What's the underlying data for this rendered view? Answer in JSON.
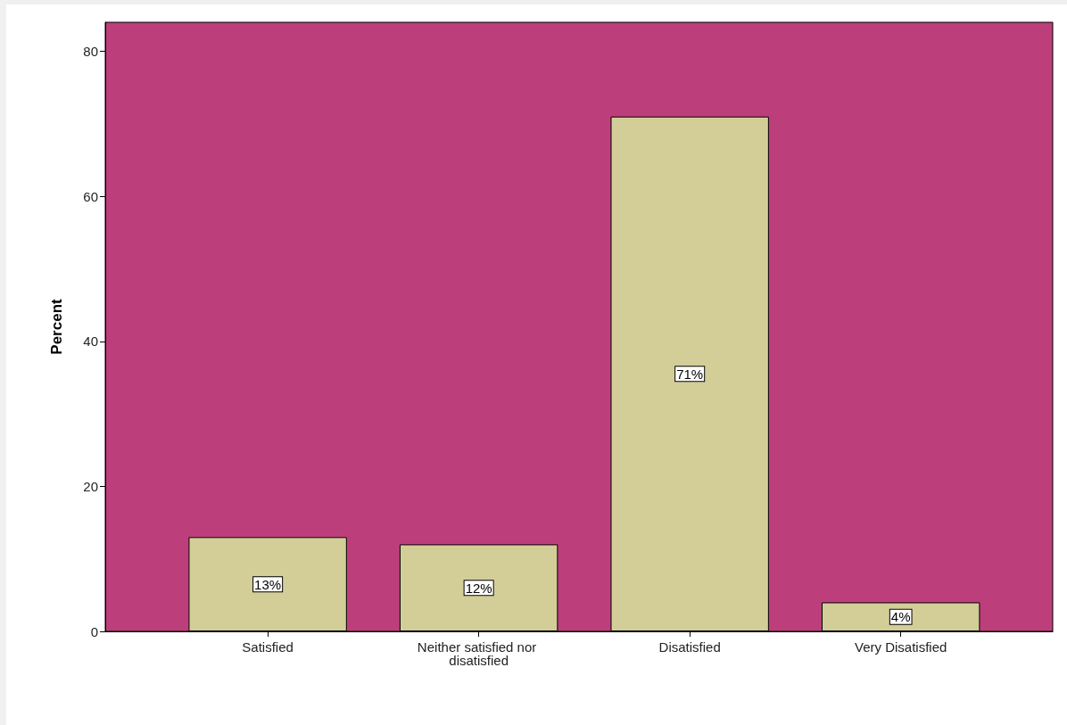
{
  "chart_data": {
    "type": "bar",
    "ylabel": "Percent",
    "categories": [
      "Satisfied",
      "Neither satisfied nor disatisfied",
      "Disatisfied",
      "Very Disatisfied"
    ],
    "values": [
      13,
      12,
      71,
      4
    ],
    "value_labels": [
      "13%",
      "12%",
      "71%",
      "4%"
    ],
    "color": "#d3ce98",
    "ylim": [
      0,
      84
    ],
    "yticks": [
      0,
      20,
      40,
      60,
      80
    ]
  }
}
